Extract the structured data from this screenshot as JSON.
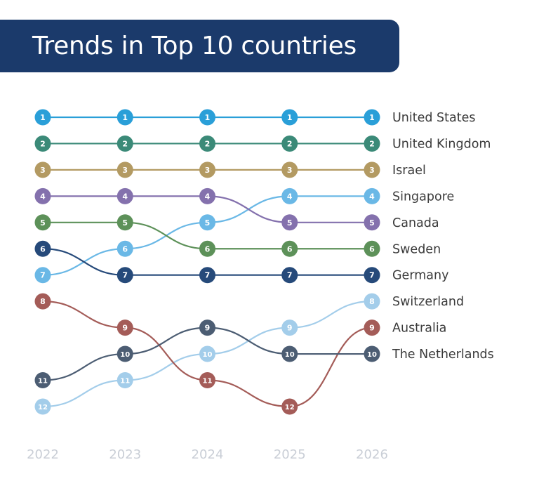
{
  "title": "Trends in Top 10 countries",
  "chart_data": {
    "type": "bump",
    "title": "Trends in Top 10 countries",
    "x": [
      "2022",
      "2023",
      "2024",
      "2025",
      "2026"
    ],
    "y_axis": "rank (1 = top)",
    "grid": false,
    "legend": "right-side end labels",
    "series": [
      {
        "name": "United States",
        "color": "#2a9fd8",
        "ranks": [
          1,
          1,
          1,
          1,
          1
        ]
      },
      {
        "name": "United Kingdom",
        "color": "#3b8a78",
        "ranks": [
          2,
          2,
          2,
          2,
          2
        ]
      },
      {
        "name": "Israel",
        "color": "#b39a62",
        "ranks": [
          3,
          3,
          3,
          3,
          3
        ]
      },
      {
        "name": "Singapore",
        "color": "#6ab8e6",
        "ranks": [
          7,
          6,
          5,
          4,
          4
        ]
      },
      {
        "name": "Canada",
        "color": "#8471ad",
        "ranks": [
          4,
          4,
          4,
          5,
          5
        ]
      },
      {
        "name": "Sweden",
        "color": "#5d9159",
        "ranks": [
          5,
          5,
          6,
          6,
          6
        ]
      },
      {
        "name": "Germany",
        "color": "#264a7a",
        "ranks": [
          6,
          7,
          7,
          7,
          7
        ]
      },
      {
        "name": "Switzerland",
        "color": "#a3cdea",
        "ranks": [
          12,
          11,
          10,
          9,
          8
        ]
      },
      {
        "name": "Australia",
        "color": "#a45c58",
        "ranks": [
          8,
          9,
          11,
          12,
          9
        ]
      },
      {
        "name": "The Netherlands",
        "color": "#4c5d73",
        "ranks": [
          11,
          10,
          9,
          10,
          10
        ]
      }
    ]
  }
}
